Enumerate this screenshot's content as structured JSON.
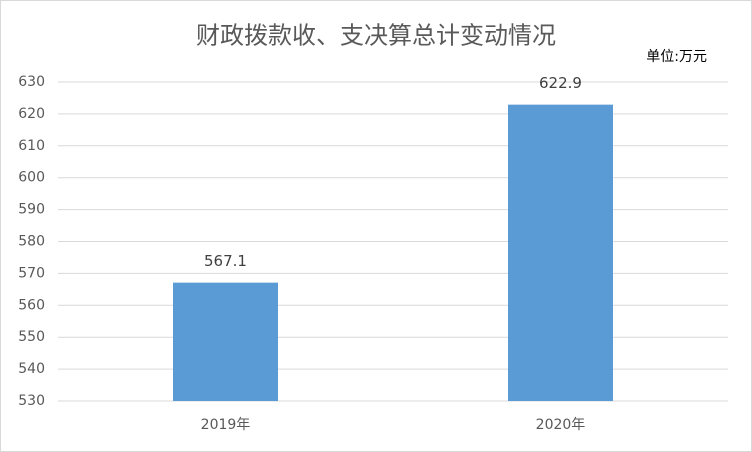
{
  "chart_data": {
    "type": "bar",
    "title": "财政拨款收、支决算总计变动情况",
    "unit_label": "单位:万元",
    "categories": [
      "2019年",
      "2020年"
    ],
    "values": [
      567.1,
      622.9
    ],
    "color": "#5b9bd5",
    "ylim": [
      530,
      630
    ],
    "yticks": [
      530,
      540,
      550,
      560,
      570,
      580,
      590,
      600,
      610,
      620,
      630
    ],
    "grid": true
  }
}
